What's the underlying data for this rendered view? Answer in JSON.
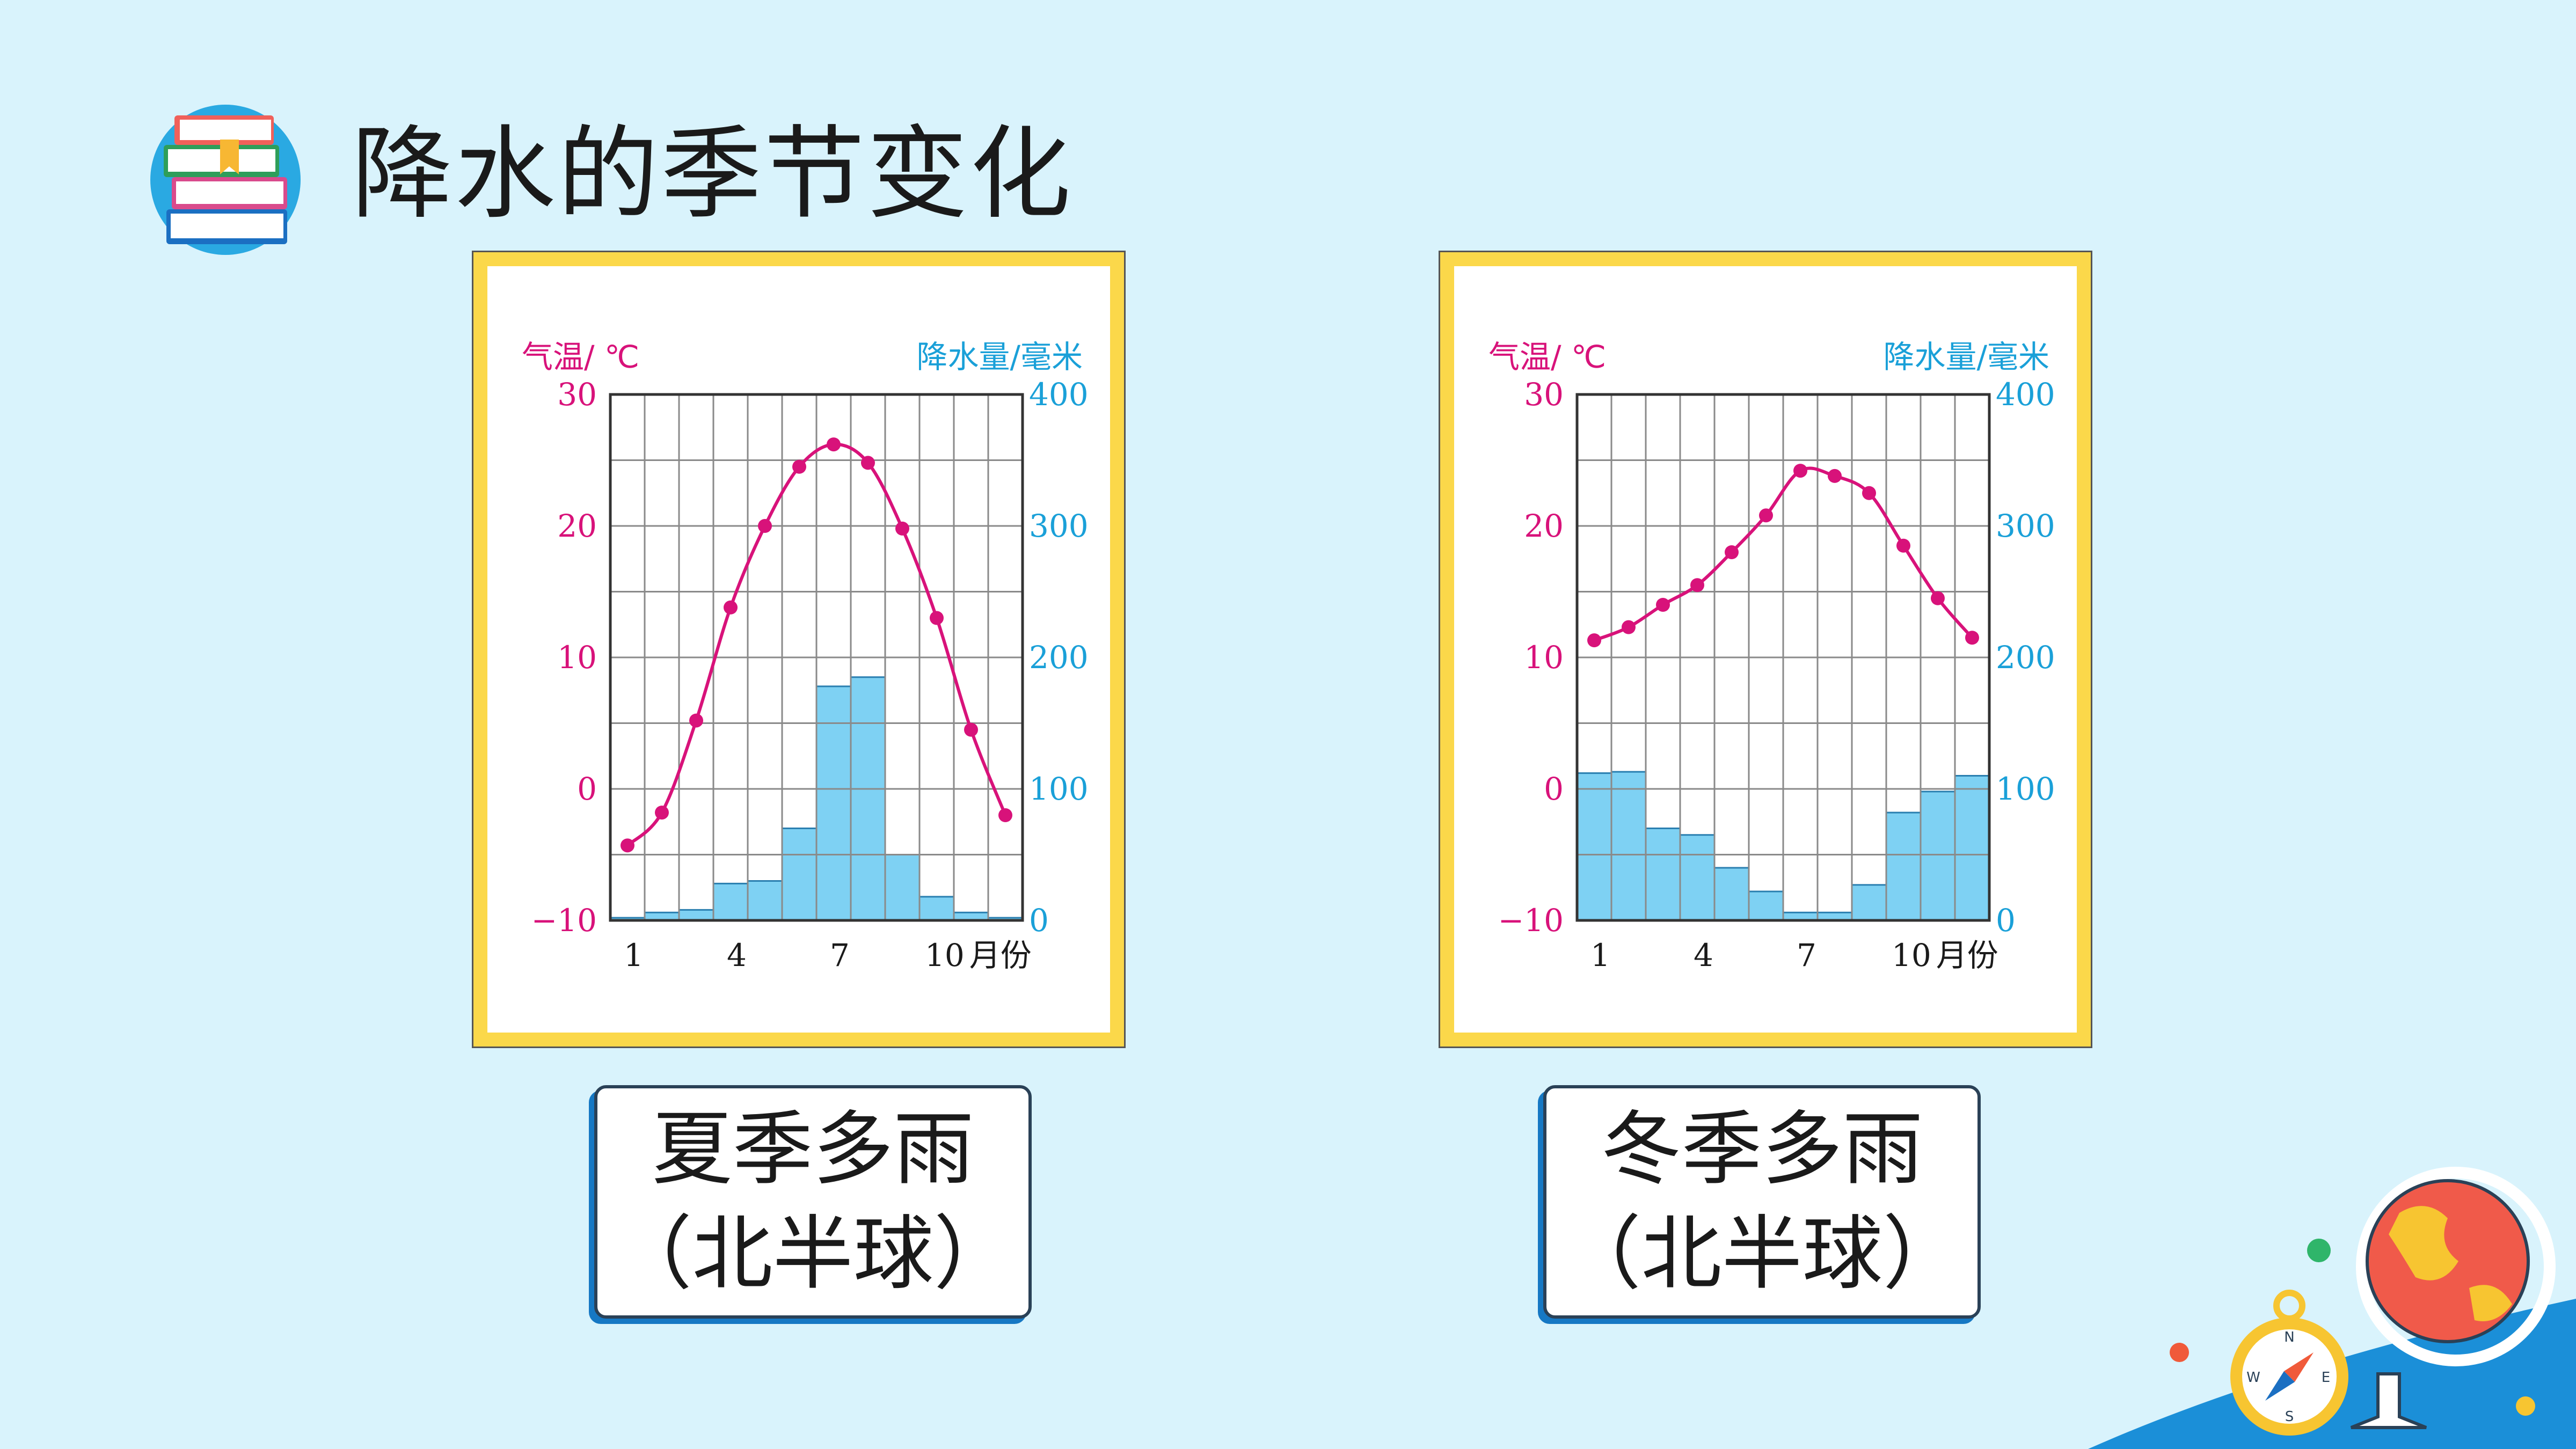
{
  "title": "降水的季节变化",
  "colors": {
    "background": "#d9f3fc",
    "frame": "#fbd84a",
    "temperature": "#d8127a",
    "precipitation": "#1aa0d8",
    "bar_fill": "#7ed1f3"
  },
  "chart_data": [
    {
      "type": "bar+line",
      "left_axis_label": "气温/ ℃",
      "right_axis_label": "降水量/毫米",
      "x_ticks": [
        "1",
        "4",
        "7",
        "10"
      ],
      "x_unit": "月份",
      "left_ticks": [
        "30",
        "20",
        "10",
        "0",
        "−10"
      ],
      "right_ticks": [
        "400",
        "300",
        "200",
        "100",
        "0"
      ],
      "months": [
        1,
        2,
        3,
        4,
        5,
        6,
        7,
        8,
        9,
        10,
        11,
        12
      ],
      "temperature": [
        -4.3,
        -1.8,
        5.2,
        13.8,
        20.0,
        24.5,
        26.2,
        24.8,
        19.8,
        13.0,
        4.5,
        -2.0
      ],
      "precipitation": [
        2,
        6,
        8,
        28,
        30,
        70,
        178,
        185,
        50,
        18,
        6,
        2
      ],
      "temp_range": [
        -10,
        30
      ],
      "precip_range": [
        0,
        400
      ]
    },
    {
      "type": "bar+line",
      "left_axis_label": "气温/ ℃",
      "right_axis_label": "降水量/毫米",
      "x_ticks": [
        "1",
        "4",
        "7",
        "10"
      ],
      "x_unit": "月份",
      "left_ticks": [
        "30",
        "20",
        "10",
        "0",
        "−10"
      ],
      "right_ticks": [
        "400",
        "300",
        "200",
        "100",
        "0"
      ],
      "months": [
        1,
        2,
        3,
        4,
        5,
        6,
        7,
        8,
        9,
        10,
        11,
        12
      ],
      "temperature": [
        11.3,
        12.3,
        14.0,
        15.5,
        18.0,
        20.8,
        24.2,
        23.8,
        22.5,
        18.5,
        14.5,
        11.5
      ],
      "precipitation": [
        112,
        113,
        70,
        65,
        40,
        22,
        6,
        6,
        27,
        82,
        98,
        110
      ],
      "temp_range": [
        -10,
        30
      ],
      "precip_range": [
        0,
        400
      ]
    }
  ],
  "captions": [
    {
      "line1": "夏季多雨",
      "line2": "（北半球）"
    },
    {
      "line1": "冬季多雨",
      "line2": "（北半球）"
    }
  ]
}
